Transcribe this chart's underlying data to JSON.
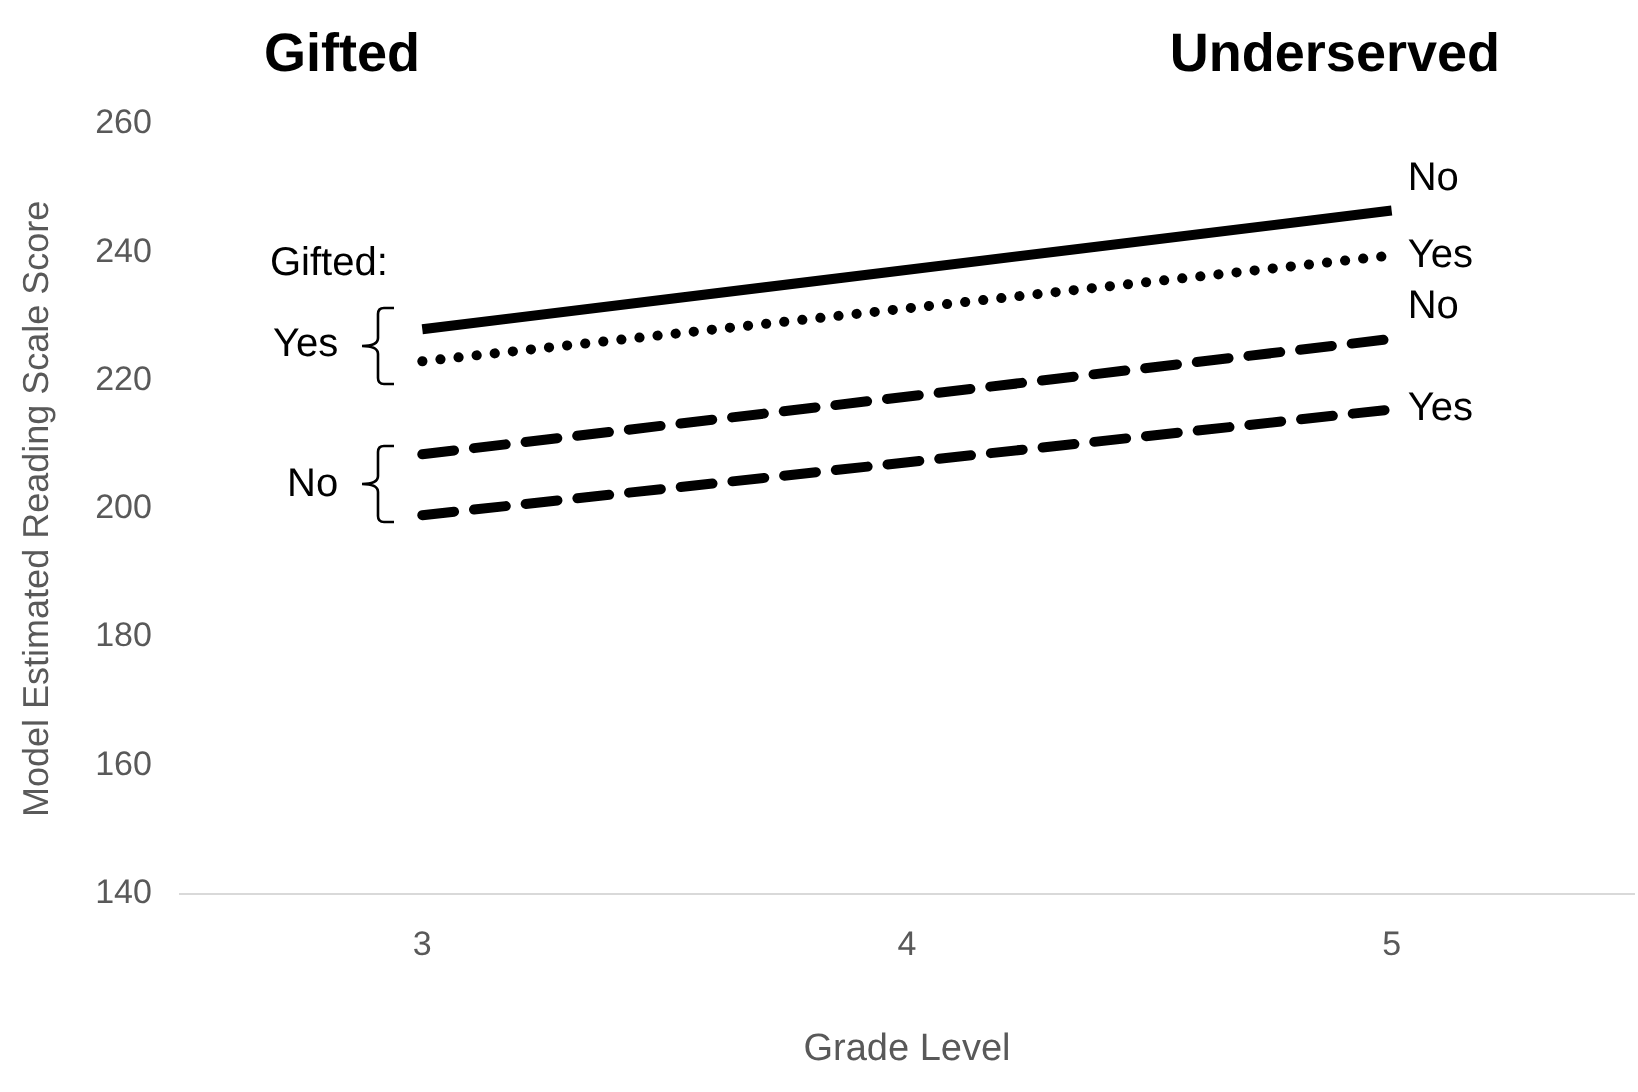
{
  "chart_data": {
    "type": "line",
    "xlabel": "Grade Level",
    "ylabel": "Model Estimated Reading Scale Score",
    "x": [
      3,
      5
    ],
    "xlim": [
      2.5,
      5.5
    ],
    "xticks": [
      3,
      4,
      5
    ],
    "ylim": [
      140,
      260
    ],
    "yticks": [
      140,
      160,
      180,
      200,
      220,
      240,
      260
    ],
    "grid": false,
    "legend": false,
    "marker": "none",
    "series": [
      {
        "name": "No",
        "color": "#000000",
        "line_style": "solid",
        "values": [
          228,
          246.5
        ]
      },
      {
        "name": "Yes",
        "color": "#000000",
        "line_style": "dotted",
        "values": [
          223,
          239.5
        ]
      },
      {
        "name": "No",
        "color": "#000000",
        "line_style": "dashed",
        "values": [
          208.5,
          226.5
        ]
      },
      {
        "name": "Yes",
        "color": "#000000",
        "line_style": "dashed",
        "values": [
          199,
          215.5
        ]
      }
    ],
    "annotations": [
      "Gifted",
      "Underserved",
      "Gifted:",
      "Yes",
      "No"
    ]
  }
}
